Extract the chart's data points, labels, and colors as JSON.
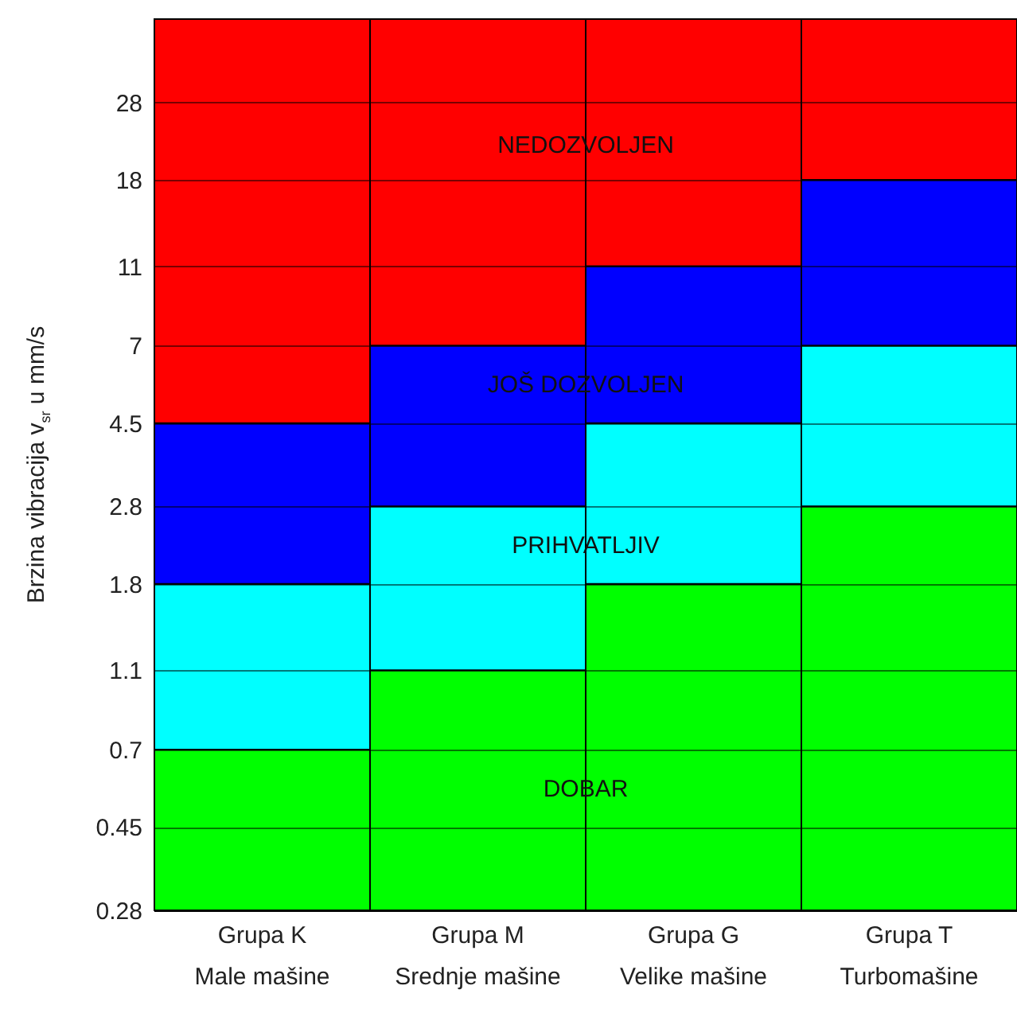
{
  "chart_data": {
    "type": "bar",
    "ylabel": "Brzina vibracija v$_{sr}$ u mm/s",
    "categories": [
      "Grupa K\nMale mašine",
      "Grupa M\nSrednje mašine",
      "Grupa G\nVelike mašine",
      "Grupa T\nTurbomašine"
    ],
    "series": [
      {
        "color": "#00ff00",
        "base": [
          0.28,
          0.28,
          0.28,
          0.28
        ],
        "values": [
          0.42,
          0.82,
          1.52,
          2.52
        ]
      },
      {
        "color": "#00ffff",
        "base": [
          0.7,
          1.1,
          1.8,
          2.8
        ],
        "values": [
          1.1,
          1.7,
          2.7,
          4.2
        ]
      },
      {
        "color": "#0000ff",
        "base": [
          1.8,
          2.8,
          4.5,
          7
        ],
        "values": [
          2.7,
          4.2,
          6.5,
          11
        ]
      },
      {
        "color": "#ff0000",
        "base": [
          4.5,
          7,
          11,
          18
        ],
        "values": [
          40.5,
          38,
          34,
          27
        ]
      }
    ],
    "log": true,
    "ylim": [
      0.28,
      45
    ],
    "yticks": [
      0.28,
      0.45,
      0.7,
      1.1,
      1.8,
      2.8,
      4.5,
      7,
      11,
      18,
      28
    ],
    "grid": "y",
    "annotations": [
      {
        "text": "NEDOZVOLJEN",
        "y": 22
      },
      {
        "text": "JOŠ DOZVOLJEN",
        "y": 5.6
      },
      {
        "text": "PRIHVATLJIV",
        "y": 2.25
      },
      {
        "text": "DOBAR",
        "y": 0.56
      }
    ]
  }
}
